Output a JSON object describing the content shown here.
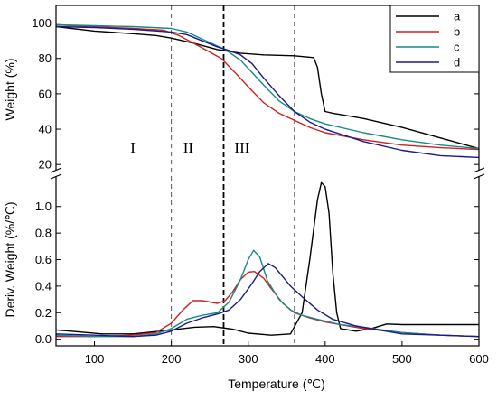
{
  "chart_data": {
    "type": "line",
    "xlabel": "Temperature (℃)",
    "xlim": [
      50,
      600
    ],
    "x_ticks": [
      100,
      200,
      300,
      400,
      500,
      600
    ],
    "grid": false,
    "legend_position": "top-right",
    "region_labels": [
      "I",
      "II",
      "III"
    ],
    "region_boundaries": [
      200,
      268,
      360
    ],
    "series_colors": {
      "a": "#000000",
      "b": "#cc2222",
      "c": "#1a8a84",
      "d": "#1a1a8c"
    },
    "panels": [
      {
        "name": "weight",
        "ylabel": "Weight (%)",
        "ylim": [
          15,
          110
        ],
        "y_ticks": [
          20,
          40,
          60,
          80,
          100
        ],
        "series": [
          {
            "name": "a",
            "points": [
              [
                50,
                98
              ],
              [
                100,
                95.5
              ],
              [
                150,
                94
              ],
              [
                180,
                93
              ],
              [
                200,
                91.5
              ],
              [
                230,
                88.5
              ],
              [
                260,
                85
              ],
              [
                290,
                83
              ],
              [
                320,
                82
              ],
              [
                360,
                81.5
              ],
              [
                385,
                80.5
              ],
              [
                390,
                75
              ],
              [
                395,
                60
              ],
              [
                400,
                50
              ],
              [
                410,
                49
              ],
              [
                450,
                46
              ],
              [
                500,
                41
              ],
              [
                550,
                35
              ],
              [
                600,
                29
              ]
            ]
          },
          {
            "name": "b",
            "points": [
              [
                50,
                99
              ],
              [
                100,
                98
              ],
              [
                150,
                97
              ],
              [
                190,
                96
              ],
              [
                210,
                93
              ],
              [
                240,
                86
              ],
              [
                265,
                80
              ],
              [
                285,
                71
              ],
              [
                300,
                64
              ],
              [
                320,
                55
              ],
              [
                340,
                49
              ],
              [
                360,
                45
              ],
              [
                380,
                41
              ],
              [
                400,
                38
              ],
              [
                450,
                34
              ],
              [
                500,
                31
              ],
              [
                550,
                29.5
              ],
              [
                600,
                28.5
              ]
            ]
          },
          {
            "name": "c",
            "points": [
              [
                50,
                99
              ],
              [
                100,
                98.5
              ],
              [
                150,
                98
              ],
              [
                200,
                97
              ],
              [
                220,
                95
              ],
              [
                240,
                91
              ],
              [
                260,
                87
              ],
              [
                270,
                85
              ],
              [
                290,
                79
              ],
              [
                305,
                72
              ],
              [
                320,
                65
              ],
              [
                340,
                56
              ],
              [
                360,
                50
              ],
              [
                380,
                46
              ],
              [
                400,
                43
              ],
              [
                450,
                38
              ],
              [
                500,
                34
              ],
              [
                550,
                31
              ],
              [
                600,
                29
              ]
            ]
          },
          {
            "name": "d",
            "points": [
              [
                50,
                98
              ],
              [
                100,
                97.5
              ],
              [
                150,
                96.5
              ],
              [
                200,
                95
              ],
              [
                220,
                93.5
              ],
              [
                240,
                90
              ],
              [
                260,
                86.5
              ],
              [
                275,
                84.5
              ],
              [
                290,
                82
              ],
              [
                305,
                77
              ],
              [
                320,
                69
              ],
              [
                340,
                59
              ],
              [
                360,
                50
              ],
              [
                380,
                44
              ],
              [
                400,
                40
              ],
              [
                450,
                33
              ],
              [
                500,
                28
              ],
              [
                550,
                25
              ],
              [
                600,
                24
              ]
            ]
          }
        ]
      },
      {
        "name": "derivative",
        "ylabel": "Deriv. Weight (%/℃)",
        "ylim": [
          -0.05,
          1.25
        ],
        "y_ticks": [
          0.0,
          0.2,
          0.4,
          0.6,
          0.8,
          1.0
        ],
        "series": [
          {
            "name": "a",
            "points": [
              [
                50,
                0.07
              ],
              [
                80,
                0.055
              ],
              [
                110,
                0.04
              ],
              [
                150,
                0.04
              ],
              [
                200,
                0.07
              ],
              [
                230,
                0.09
              ],
              [
                255,
                0.095
              ],
              [
                280,
                0.075
              ],
              [
                300,
                0.045
              ],
              [
                330,
                0.03
              ],
              [
                355,
                0.04
              ],
              [
                370,
                0.2
              ],
              [
                380,
                0.6
              ],
              [
                390,
                1.05
              ],
              [
                395,
                1.18
              ],
              [
                400,
                1.15
              ],
              [
                405,
                0.95
              ],
              [
                410,
                0.5
              ],
              [
                415,
                0.2
              ],
              [
                420,
                0.08
              ],
              [
                440,
                0.06
              ],
              [
                460,
                0.08
              ],
              [
                480,
                0.115
              ],
              [
                500,
                0.11
              ],
              [
                550,
                0.11
              ],
              [
                600,
                0.11
              ]
            ]
          },
          {
            "name": "b",
            "points": [
              [
                50,
                0.02
              ],
              [
                100,
                0.02
              ],
              [
                150,
                0.03
              ],
              [
                180,
                0.05
              ],
              [
                200,
                0.12
              ],
              [
                215,
                0.22
              ],
              [
                228,
                0.29
              ],
              [
                240,
                0.29
              ],
              [
                260,
                0.27
              ],
              [
                270,
                0.29
              ],
              [
                280,
                0.36
              ],
              [
                290,
                0.45
              ],
              [
                300,
                0.505
              ],
              [
                308,
                0.51
              ],
              [
                320,
                0.46
              ],
              [
                330,
                0.38
              ],
              [
                345,
                0.27
              ],
              [
                360,
                0.2
              ],
              [
                380,
                0.16
              ],
              [
                400,
                0.13
              ],
              [
                450,
                0.08
              ],
              [
                500,
                0.05
              ],
              [
                550,
                0.03
              ],
              [
                600,
                0.02
              ]
            ]
          },
          {
            "name": "c",
            "points": [
              [
                50,
                0.03
              ],
              [
                100,
                0.02
              ],
              [
                150,
                0.02
              ],
              [
                180,
                0.04
              ],
              [
                200,
                0.08
              ],
              [
                220,
                0.15
              ],
              [
                240,
                0.18
              ],
              [
                260,
                0.2
              ],
              [
                275,
                0.28
              ],
              [
                290,
                0.45
              ],
              [
                300,
                0.6
              ],
              [
                307,
                0.67
              ],
              [
                315,
                0.62
              ],
              [
                325,
                0.44
              ],
              [
                340,
                0.3
              ],
              [
                355,
                0.22
              ],
              [
                370,
                0.18
              ],
              [
                390,
                0.15
              ],
              [
                420,
                0.11
              ],
              [
                450,
                0.09
              ],
              [
                500,
                0.05
              ],
              [
                550,
                0.03
              ],
              [
                600,
                0.02
              ]
            ]
          },
          {
            "name": "d",
            "points": [
              [
                50,
                0.04
              ],
              [
                100,
                0.03
              ],
              [
                150,
                0.02
              ],
              [
                180,
                0.03
              ],
              [
                200,
                0.06
              ],
              [
                220,
                0.12
              ],
              [
                240,
                0.16
              ],
              [
                260,
                0.19
              ],
              [
                275,
                0.22
              ],
              [
                290,
                0.3
              ],
              [
                305,
                0.42
              ],
              [
                315,
                0.51
              ],
              [
                326,
                0.57
              ],
              [
                335,
                0.54
              ],
              [
                345,
                0.47
              ],
              [
                355,
                0.4
              ],
              [
                370,
                0.32
              ],
              [
                390,
                0.22
              ],
              [
                410,
                0.15
              ],
              [
                440,
                0.1
              ],
              [
                470,
                0.07
              ],
              [
                500,
                0.04
              ],
              [
                550,
                0.03
              ],
              [
                600,
                0.02
              ]
            ]
          }
        ]
      }
    ]
  }
}
